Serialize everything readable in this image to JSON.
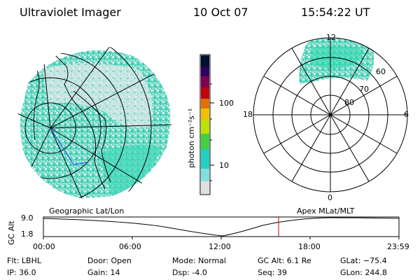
{
  "header": {
    "instrument": "Ultraviolet Imager",
    "date": "10 Oct 07",
    "time": "15:54:22 UT"
  },
  "colorbar": {
    "unit_label": "photon cm⁻²s⁻¹",
    "ticks": [
      "100",
      "10"
    ],
    "colors": [
      "#001030",
      "#300060",
      "#800050",
      "#c00010",
      "#e07000",
      "#f0c000",
      "#c0e000",
      "#40d040",
      "#20d0c0",
      "#80e0e0",
      "#e0e0e0"
    ]
  },
  "polar_plot": {
    "hour_labels": {
      "top": "12",
      "left": "18",
      "right": "6",
      "bottom": "0"
    },
    "lat_labels": [
      "60",
      "70",
      "80"
    ]
  },
  "map_labels": {
    "left": "Geographic Lat/Lon",
    "right": "Apex MLat/MLT"
  },
  "timeline": {
    "ylabel": "GC Alt",
    "y_ticks": [
      "9.0",
      "1.8"
    ],
    "x_ticks": [
      "00:00",
      "06:00",
      "12:00",
      "18:00",
      "23:59"
    ],
    "marker_color": "#c00000"
  },
  "info": {
    "flt": "Flt: LBHL",
    "ip": "IP: 36.0",
    "door": "Door: Open",
    "gain": "Gain: 14",
    "mode": "Mode: Normal",
    "dsp": "Dsp:    -4.0",
    "gcalt": "GC Alt: 6.1 Re",
    "seq": "Seq: 39",
    "glat": "GLat: −75.4",
    "glon": "GLon: 244.8"
  }
}
